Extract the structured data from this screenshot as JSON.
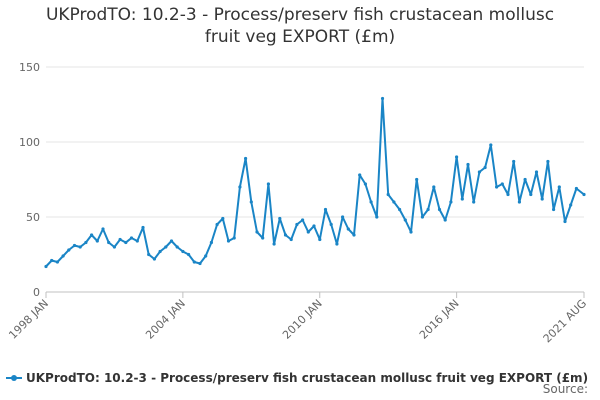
{
  "chart_data": {
    "type": "line",
    "title_lines": [
      "UKProdTO: 10.2-3 - Process/preserv fish crustacean mollusc",
      "fruit veg EXPORT (£m)"
    ],
    "xlabel": "",
    "ylabel": "",
    "ylim": [
      0,
      150
    ],
    "y_ticks": [
      0,
      50,
      100,
      150
    ],
    "x_ticks": [
      "1998 JAN",
      "2004 JAN",
      "2010 JAN",
      "2016 JAN",
      "2021 AUG"
    ],
    "x_range": [
      "1998 JAN",
      "2021 AUG"
    ],
    "grid": "horizontal",
    "legend_position": "bottom",
    "source_label": "Source:",
    "series": [
      {
        "name": "UKProdTO: 10.2-3 - Process/preserv fish crustacean mollusc fruit veg EXPORT (£m)",
        "color": "#1a85c6",
        "points": [
          [
            "1998 JAN",
            17
          ],
          [
            "1998 APR",
            21
          ],
          [
            "1998 JUL",
            20
          ],
          [
            "1998 OCT",
            24
          ],
          [
            "1999 JAN",
            28
          ],
          [
            "1999 APR",
            31
          ],
          [
            "1999 JUL",
            30
          ],
          [
            "1999 OCT",
            33
          ],
          [
            "2000 JAN",
            38
          ],
          [
            "2000 APR",
            34
          ],
          [
            "2000 JUL",
            42
          ],
          [
            "2000 OCT",
            33
          ],
          [
            "2001 JAN",
            30
          ],
          [
            "2001 APR",
            35
          ],
          [
            "2001 JUL",
            33
          ],
          [
            "2001 OCT",
            36
          ],
          [
            "2002 JAN",
            34
          ],
          [
            "2002 APR",
            43
          ],
          [
            "2002 JUL",
            25
          ],
          [
            "2002 OCT",
            22
          ],
          [
            "2003 JAN",
            27
          ],
          [
            "2003 APR",
            30
          ],
          [
            "2003 JUL",
            34
          ],
          [
            "2003 OCT",
            30
          ],
          [
            "2004 JAN",
            27
          ],
          [
            "2004 APR",
            25
          ],
          [
            "2004 JUL",
            20
          ],
          [
            "2004 OCT",
            19
          ],
          [
            "2005 JAN",
            24
          ],
          [
            "2005 APR",
            33
          ],
          [
            "2005 JUL",
            45
          ],
          [
            "2005 OCT",
            49
          ],
          [
            "2006 JAN",
            34
          ],
          [
            "2006 APR",
            36
          ],
          [
            "2006 JUL",
            70
          ],
          [
            "2006 OCT",
            89
          ],
          [
            "2007 JAN",
            60
          ],
          [
            "2007 APR",
            40
          ],
          [
            "2007 JUL",
            36
          ],
          [
            "2007 OCT",
            72
          ],
          [
            "2008 JAN",
            32
          ],
          [
            "2008 APR",
            49
          ],
          [
            "2008 JUL",
            38
          ],
          [
            "2008 OCT",
            35
          ],
          [
            "2009 JAN",
            45
          ],
          [
            "2009 APR",
            48
          ],
          [
            "2009 JUL",
            40
          ],
          [
            "2009 OCT",
            44
          ],
          [
            "2010 JAN",
            35
          ],
          [
            "2010 APR",
            55
          ],
          [
            "2010 JUL",
            45
          ],
          [
            "2010 OCT",
            32
          ],
          [
            "2011 JAN",
            50
          ],
          [
            "2011 APR",
            42
          ],
          [
            "2011 JUL",
            38
          ],
          [
            "2011 OCT",
            78
          ],
          [
            "2012 JAN",
            72
          ],
          [
            "2012 APR",
            60
          ],
          [
            "2012 JUL",
            50
          ],
          [
            "2012 OCT",
            129
          ],
          [
            "2013 JAN",
            65
          ],
          [
            "2013 APR",
            60
          ],
          [
            "2013 JUL",
            55
          ],
          [
            "2013 OCT",
            48
          ],
          [
            "2014 JAN",
            40
          ],
          [
            "2014 APR",
            75
          ],
          [
            "2014 JUL",
            50
          ],
          [
            "2014 OCT",
            55
          ],
          [
            "2015 JAN",
            70
          ],
          [
            "2015 APR",
            55
          ],
          [
            "2015 JUL",
            48
          ],
          [
            "2015 OCT",
            60
          ],
          [
            "2016 JAN",
            90
          ],
          [
            "2016 APR",
            62
          ],
          [
            "2016 JUL",
            85
          ],
          [
            "2016 OCT",
            60
          ],
          [
            "2017 JAN",
            80
          ],
          [
            "2017 APR",
            83
          ],
          [
            "2017 JUL",
            98
          ],
          [
            "2017 OCT",
            70
          ],
          [
            "2018 JAN",
            72
          ],
          [
            "2018 APR",
            65
          ],
          [
            "2018 JUL",
            87
          ],
          [
            "2018 OCT",
            60
          ],
          [
            "2019 JAN",
            75
          ],
          [
            "2019 APR",
            65
          ],
          [
            "2019 JUL",
            80
          ],
          [
            "2019 OCT",
            62
          ],
          [
            "2020 JAN",
            87
          ],
          [
            "2020 APR",
            55
          ],
          [
            "2020 JUL",
            70
          ],
          [
            "2020 OCT",
            47
          ],
          [
            "2021 JAN",
            58
          ],
          [
            "2021 APR",
            69
          ],
          [
            "2021 AUG",
            65
          ]
        ]
      }
    ]
  }
}
